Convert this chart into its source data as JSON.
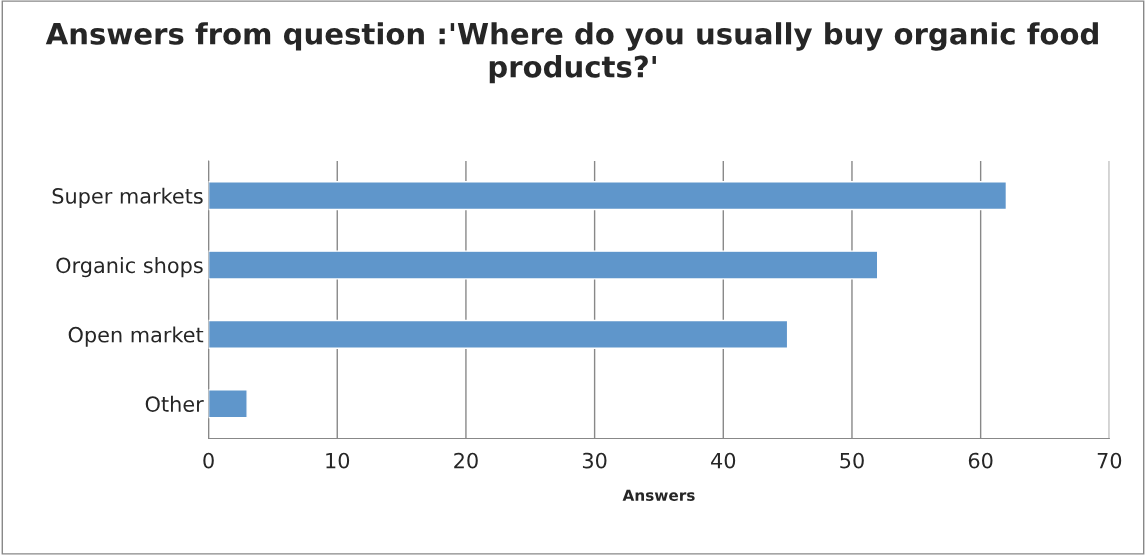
{
  "chart_data": {
    "type": "bar",
    "orientation": "horizontal",
    "title": "Answers from question :'Where do you usually buy organic food products?'",
    "xlabel": "Answers",
    "categories": [
      "Super markets",
      "Organic shops",
      "Open market",
      "Other"
    ],
    "values": [
      62,
      52,
      45,
      3
    ],
    "color": "#5f96cb",
    "xlim": [
      0,
      70
    ],
    "xticks": [
      0,
      10,
      20,
      30,
      40,
      50,
      60,
      70
    ],
    "grid": "x",
    "legend": false
  }
}
